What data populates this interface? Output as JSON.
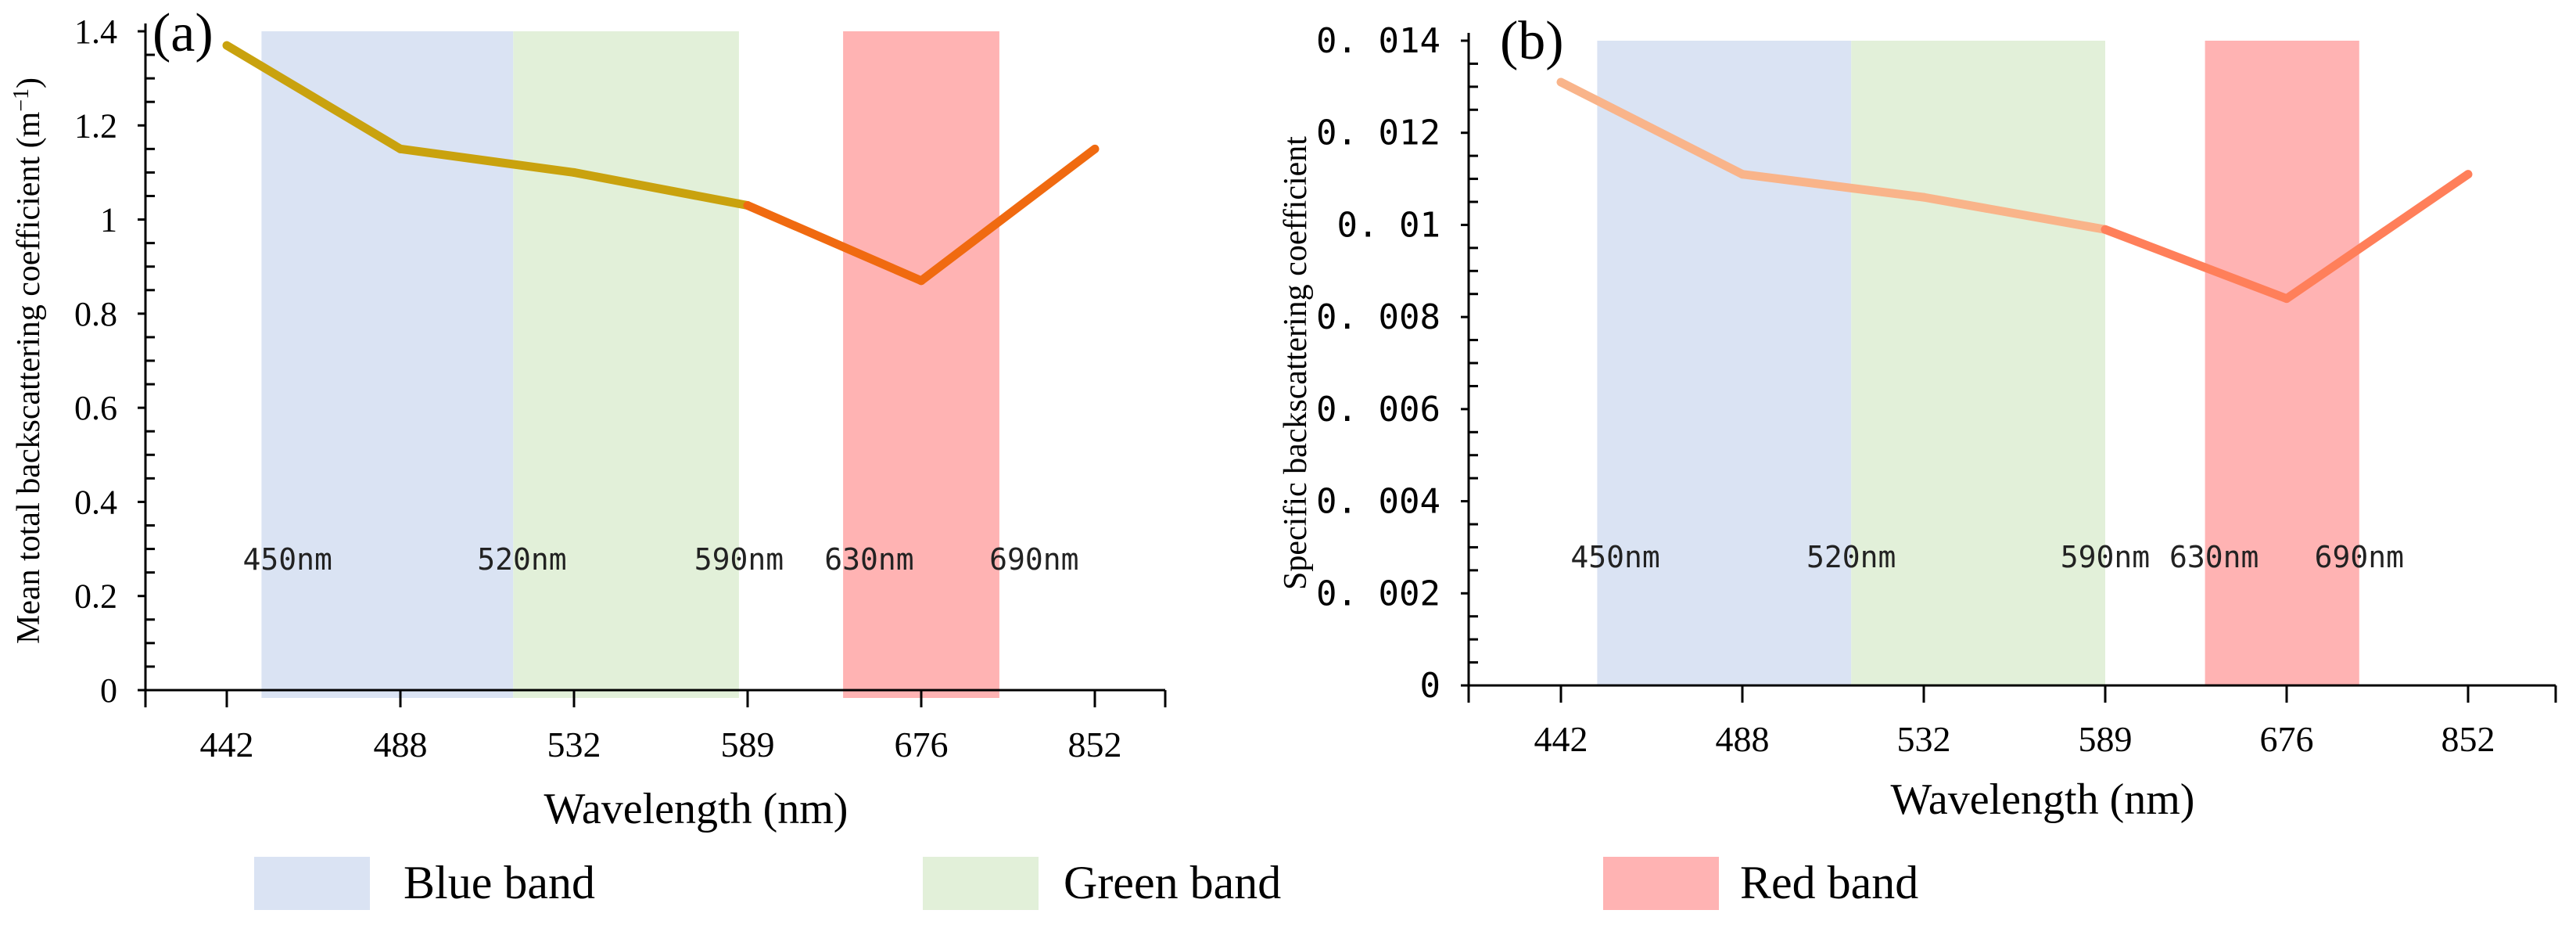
{
  "chart_data": [
    {
      "panel_label": "(a)",
      "type": "line",
      "categories": [
        "442",
        "488",
        "532",
        "589",
        "676",
        "852"
      ],
      "values": [
        1.37,
        1.15,
        1.1,
        1.03,
        0.87,
        1.15
      ],
      "xlabel": "Wavelength (nm)",
      "ylabel": "Mean total backscattering coefficient (m",
      "ylabel_sup": "−1",
      "ylabel_tail": ")",
      "ylim": [
        0,
        1.4
      ],
      "yticks": [
        0,
        0.2,
        0.4,
        0.6,
        0.8,
        1,
        1.2,
        1.4
      ],
      "ytick_labels": [
        "0",
        "0.2",
        "0.4",
        "0.6",
        "0.8",
        "1",
        "1.2",
        "1.4"
      ],
      "line_color": "#C9A20E",
      "line_color_red": "#F06A10",
      "bands": [
        {
          "name": "blue",
          "from_index": 0.2,
          "to_index": 1.65,
          "color": "#DAE3F3"
        },
        {
          "name": "green",
          "from_index": 1.65,
          "to_index": 2.95,
          "color": "#E2F0D9"
        },
        {
          "name": "red",
          "from_index": 3.55,
          "to_index": 4.45,
          "color": "#FFB3B3"
        }
      ],
      "band_edge_labels": [
        {
          "text": "450nm",
          "at_index": 0.35
        },
        {
          "text": "520nm",
          "at_index": 1.7
        },
        {
          "text": "590nm",
          "at_index": 2.95
        },
        {
          "text": "630nm",
          "at_index": 3.7
        },
        {
          "text": "690nm",
          "at_index": 4.65
        }
      ]
    },
    {
      "panel_label": "(b)",
      "type": "line",
      "categories": [
        "442",
        "488",
        "532",
        "589",
        "676",
        "852"
      ],
      "values": [
        0.0131,
        0.0111,
        0.0106,
        0.0099,
        0.0084,
        0.0111
      ],
      "xlabel": "Wavelength (nm)",
      "ylabel": "Specific backscattering coefficient",
      "ylim": [
        0,
        0.014
      ],
      "yticks": [
        0,
        0.002,
        0.004,
        0.006,
        0.008,
        0.01,
        0.012,
        0.014
      ],
      "ytick_labels": [
        "0",
        "0. 002",
        "0. 004",
        "0. 006",
        "0. 008",
        "0. 01",
        "0. 012",
        "0. 014"
      ],
      "line_color": "#F9B48A",
      "line_color_red": "#FF7F5A",
      "bands": [
        {
          "name": "blue",
          "from_index": 0.2,
          "to_index": 1.6,
          "color": "#DAE3F3"
        },
        {
          "name": "green",
          "from_index": 1.6,
          "to_index": 3.0,
          "color": "#E2F0D9"
        },
        {
          "name": "red",
          "from_index": 3.55,
          "to_index": 4.4,
          "color": "#FFB3B3"
        }
      ],
      "band_edge_labels": [
        {
          "text": "450nm",
          "at_index": 0.3
        },
        {
          "text": "520nm",
          "at_index": 1.6
        },
        {
          "text": "590nm",
          "at_index": 3.0
        },
        {
          "text": "630nm",
          "at_index": 3.6
        },
        {
          "text": "690nm",
          "at_index": 4.4
        }
      ]
    }
  ],
  "legend": [
    {
      "label": "Blue band",
      "color": "#DAE3F3"
    },
    {
      "label": "Green band",
      "color": "#E2F0D9"
    },
    {
      "label": "Red band",
      "color": "#FFB3B3"
    }
  ]
}
